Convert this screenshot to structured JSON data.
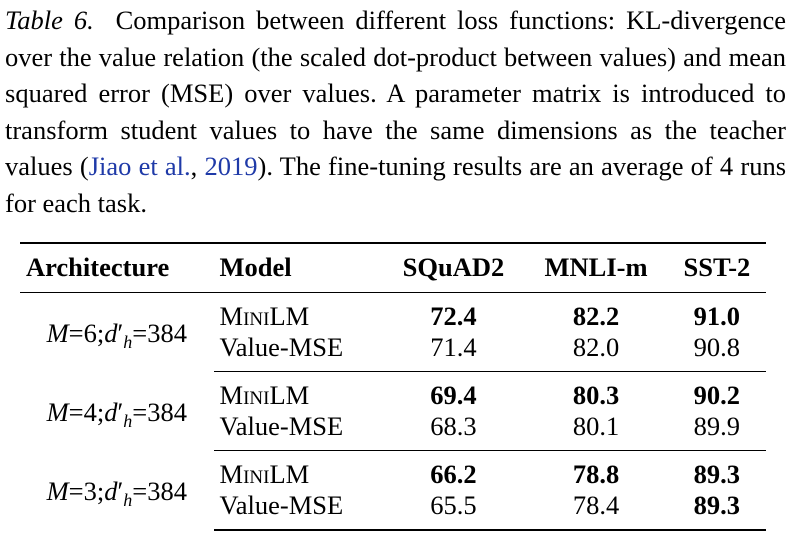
{
  "caption": {
    "label": "Table 6.",
    "text_before_cite": "Comparison between different loss functions: KL-divergence over the value relation (the scaled dot-product between values) and mean squared error (MSE) over values. A parameter matrix is introduced to transform student values to have the same dimensions as the teacher values (",
    "cite_author": "Jiao et al.",
    "cite_sep": ", ",
    "cite_year": "2019",
    "text_after_cite": "). The fine-tuning results are an average of 4 runs for each task."
  },
  "table": {
    "headers": {
      "architecture": "Architecture",
      "model": "Model",
      "squad": "SQuAD2",
      "mnli": "MNLI-m",
      "sst": "SST-2"
    },
    "groups": [
      {
        "arch_m": "M",
        "arch_m_val": "=6;",
        "arch_d": "d",
        "arch_prime": "′",
        "arch_sub": "h",
        "arch_d_val": "=384",
        "rows": [
          {
            "model": "MiniLM",
            "squad": "72.4",
            "mnli": "82.2",
            "sst": "91.0",
            "bold": [
              true,
              true,
              true
            ]
          },
          {
            "model": "Value-MSE",
            "squad": "71.4",
            "mnli": "82.0",
            "sst": "90.8",
            "bold": [
              false,
              false,
              false
            ]
          }
        ]
      },
      {
        "arch_m": "M",
        "arch_m_val": "=4;",
        "arch_d": "d",
        "arch_prime": "′",
        "arch_sub": "h",
        "arch_d_val": "=384",
        "rows": [
          {
            "model": "MiniLM",
            "squad": "69.4",
            "mnli": "80.3",
            "sst": "90.2",
            "bold": [
              true,
              true,
              true
            ]
          },
          {
            "model": "Value-MSE",
            "squad": "68.3",
            "mnli": "80.1",
            "sst": "89.9",
            "bold": [
              false,
              false,
              false
            ]
          }
        ]
      },
      {
        "arch_m": "M",
        "arch_m_val": "=3;",
        "arch_d": "d",
        "arch_prime": "′",
        "arch_sub": "h",
        "arch_d_val": "=384",
        "rows": [
          {
            "model": "MiniLM",
            "squad": "66.2",
            "mnli": "78.8",
            "sst": "89.3",
            "bold": [
              true,
              true,
              true
            ]
          },
          {
            "model": "Value-MSE",
            "squad": "65.5",
            "mnli": "78.4",
            "sst": "89.3",
            "bold": [
              false,
              false,
              true
            ]
          }
        ]
      }
    ]
  }
}
